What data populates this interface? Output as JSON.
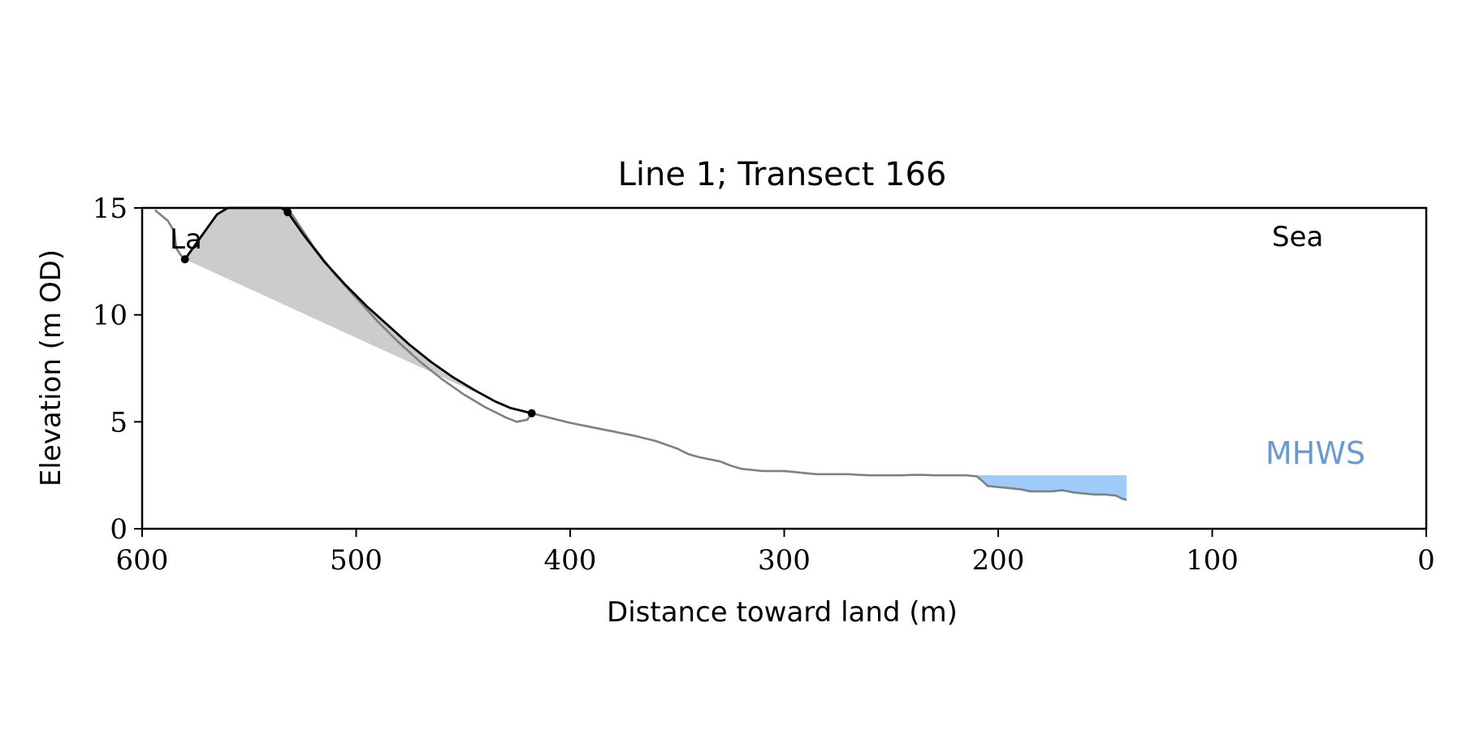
{
  "chart_data": {
    "type": "line",
    "title": "Line 1; Transect 166",
    "xlabel": "Distance toward land (m)",
    "ylabel": "Elevation (m OD)",
    "xlim": [
      600,
      0
    ],
    "ylim": [
      0,
      15
    ],
    "x_inverted": true,
    "xticks": [
      600,
      500,
      400,
      300,
      200,
      100,
      0
    ],
    "yticks": [
      0,
      5,
      10,
      15
    ],
    "grid": false,
    "annotations": {
      "land_label": "La",
      "sea_label": "Sea",
      "mhws_label": "MHWS"
    },
    "colors": {
      "profile": "#808080",
      "fitted_curve": "#000000",
      "fill": "#cccccc",
      "mhws": "#9ecbfa",
      "mhws_text": "#6a9bcf"
    },
    "series": [
      {
        "role": "profile",
        "x": [
          594,
          588,
          585,
          584,
          582,
          580,
          575,
          570,
          565,
          560,
          555,
          550,
          545,
          540,
          535,
          530,
          520,
          510,
          500,
          490,
          480,
          470,
          460,
          450,
          440,
          430,
          425,
          420,
          418,
          410,
          400,
          390,
          380,
          370,
          360,
          350,
          345,
          340,
          335,
          330,
          325,
          320,
          315,
          310,
          305,
          300,
          295,
          290,
          285,
          280,
          275,
          270,
          265,
          260,
          255,
          250,
          245,
          240,
          235,
          230,
          225,
          220,
          215,
          210,
          207,
          205,
          200,
          195,
          190,
          185,
          180,
          175,
          170,
          165,
          160,
          155,
          150,
          145,
          142,
          140
        ],
        "y": [
          14.9,
          14.4,
          13.9,
          13.1,
          12.8,
          12.6,
          13.3,
          14.0,
          14.7,
          15.0,
          15.0,
          15.0,
          15.0,
          15.0,
          15.0,
          14.7,
          13.2,
          11.9,
          10.8,
          9.7,
          8.7,
          7.8,
          7.0,
          6.3,
          5.7,
          5.2,
          5.0,
          5.1,
          5.4,
          5.2,
          4.95,
          4.75,
          4.55,
          4.35,
          4.1,
          3.75,
          3.5,
          3.35,
          3.25,
          3.15,
          2.95,
          2.8,
          2.75,
          2.7,
          2.7,
          2.7,
          2.65,
          2.6,
          2.55,
          2.55,
          2.55,
          2.55,
          2.52,
          2.5,
          2.5,
          2.5,
          2.5,
          2.52,
          2.52,
          2.5,
          2.5,
          2.5,
          2.5,
          2.45,
          2.2,
          2.0,
          1.95,
          1.9,
          1.85,
          1.75,
          1.75,
          1.75,
          1.8,
          1.7,
          1.65,
          1.6,
          1.6,
          1.55,
          1.4,
          1.35
        ]
      },
      {
        "role": "fitted_curve",
        "x": [
          580,
          575,
          570,
          565,
          560,
          555,
          550,
          545,
          540,
          535,
          532,
          525,
          515,
          505,
          495,
          485,
          475,
          465,
          455,
          445,
          435,
          428,
          422,
          418
        ],
        "y": [
          12.6,
          13.3,
          14.0,
          14.7,
          15.0,
          15.0,
          15.0,
          15.0,
          15.0,
          15.0,
          14.8,
          13.8,
          12.5,
          11.4,
          10.4,
          9.5,
          8.6,
          7.8,
          7.1,
          6.5,
          5.95,
          5.65,
          5.5,
          5.4
        ]
      }
    ],
    "markers": [
      {
        "x": 580,
        "y": 12.6
      },
      {
        "x": 532,
        "y": 14.8
      },
      {
        "x": 418,
        "y": 5.4
      }
    ],
    "shaded_region": {
      "upper_x": [
        580,
        575,
        570,
        565,
        560,
        555,
        550,
        545,
        540,
        535,
        532,
        525,
        515,
        505,
        495,
        485,
        475,
        465,
        455,
        445,
        435
      ],
      "upper_y": [
        12.6,
        13.3,
        14.0,
        14.7,
        15.0,
        15.0,
        15.0,
        15.0,
        15.0,
        15.0,
        14.8,
        13.8,
        12.5,
        11.4,
        10.4,
        9.5,
        8.6,
        7.8,
        7.1,
        6.5,
        5.95
      ],
      "lower_start": [
        580,
        12.6
      ],
      "lower_end": [
        435,
        5.95
      ]
    },
    "mhws_band": {
      "x_from": 210,
      "x_to": 140,
      "level": 2.5,
      "floor_x": [
        210,
        207,
        205,
        200,
        195,
        190,
        185,
        180,
        175,
        170,
        165,
        160,
        155,
        150,
        145,
        142,
        140
      ],
      "floor_y": [
        2.45,
        2.2,
        2.0,
        1.95,
        1.9,
        1.85,
        1.75,
        1.75,
        1.75,
        1.8,
        1.7,
        1.65,
        1.6,
        1.6,
        1.55,
        1.4,
        1.35
      ]
    }
  }
}
